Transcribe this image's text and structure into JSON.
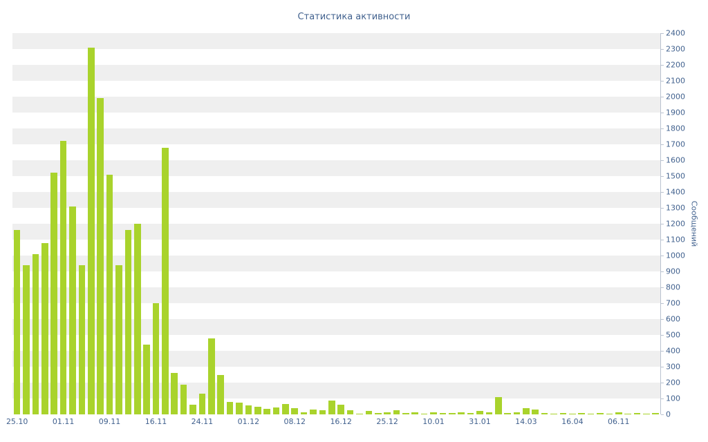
{
  "chart_data": {
    "type": "bar",
    "title": "Статистика активности",
    "ylabel": "Сообщений",
    "xlabel": "",
    "ylim": [
      0,
      2400
    ],
    "y_tick_step": 100,
    "x_tick_every": 5,
    "x_tick_labels": [
      "25.10",
      "01.11",
      "09.11",
      "16.11",
      "24.11",
      "01.12",
      "08.12",
      "16.12",
      "25.12",
      "10.01",
      "31.01",
      "14.03",
      "16.04",
      "06.11"
    ],
    "values": [
      1160,
      940,
      1010,
      1080,
      1520,
      1720,
      1310,
      940,
      2310,
      1990,
      1510,
      940,
      1160,
      1200,
      440,
      700,
      1680,
      260,
      185,
      60,
      130,
      480,
      250,
      80,
      75,
      55,
      50,
      35,
      45,
      65,
      40,
      12,
      30,
      25,
      85,
      60,
      25,
      6,
      20,
      8,
      15,
      25,
      8,
      12,
      6,
      12,
      8,
      10,
      15,
      8,
      20,
      15,
      110,
      8,
      12,
      40,
      30,
      8,
      6,
      8,
      6,
      10,
      6,
      8,
      6,
      12,
      6,
      8,
      5,
      10
    ],
    "legend_position": "none",
    "grid": "horizontal-bands",
    "y_axis_position": "right"
  },
  "colors": {
    "bar": "#a9d32c",
    "text": "#41618e",
    "band": "#efefef",
    "axis": "#b9c2d0",
    "background": "#ffffff"
  }
}
